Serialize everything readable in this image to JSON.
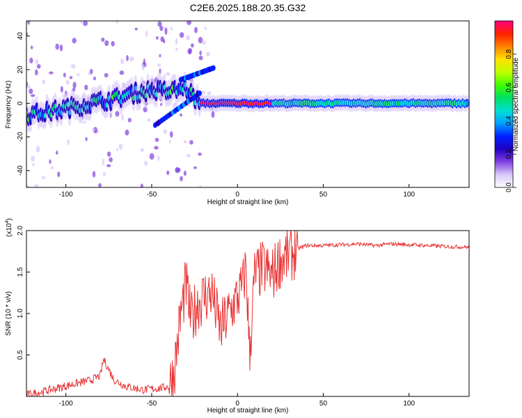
{
  "title": "C2E6.2025.188.20.35.G32",
  "chart_data": [
    {
      "type": "heatmap",
      "xlabel": "Height of straight line (km)",
      "ylabel": "Frequency (Hz)",
      "xlim": [
        -123,
        135
      ],
      "ylim": [
        -50,
        49
      ],
      "xticks": [
        -100,
        -50,
        0,
        50,
        100
      ],
      "xtick_labels": [
        "-100",
        "-50",
        "0",
        "50",
        "100"
      ],
      "yticks": [
        -40,
        -20,
        0,
        20,
        40
      ],
      "ytick_labels": [
        "-40",
        "-20",
        "0",
        "20",
        "40"
      ],
      "colorbar": {
        "label": "Normalized spectral amplitude",
        "range": [
          0,
          1
        ],
        "ticks": [
          0.0,
          0.2,
          0.4,
          0.6,
          0.8
        ],
        "tick_labels": [
          "0.0",
          "0.2",
          "0.4",
          "0.6",
          "0.8"
        ],
        "colormap": [
          "#ffffff",
          "#d8c8f8",
          "#8040e0",
          "#2000c0",
          "#0020ff",
          "#00a0ff",
          "#00e0d0",
          "#00e060",
          "#40ff00",
          "#c0ff00",
          "#ffe000",
          "#ff8000",
          "#ff2000",
          "#ff0080"
        ]
      },
      "ridge": [
        {
          "x": -123,
          "y": -7
        },
        {
          "x": -110,
          "y": -5
        },
        {
          "x": -100,
          "y": -3
        },
        {
          "x": -90,
          "y": -1
        },
        {
          "x": -80,
          "y": 1
        },
        {
          "x": -70,
          "y": 3
        },
        {
          "x": -60,
          "y": 6
        },
        {
          "x": -50,
          "y": 8
        },
        {
          "x": -40,
          "y": 7
        },
        {
          "x": -30,
          "y": 9
        },
        {
          "x": -22,
          "y": 0
        },
        {
          "x": 0,
          "y": 0
        },
        {
          "x": 50,
          "y": 0
        },
        {
          "x": 100,
          "y": 0
        },
        {
          "x": 135,
          "y": 0
        }
      ],
      "description_peak_ridge_x": [
        -22,
        20
      ]
    },
    {
      "type": "line",
      "xlabel": "Height of straight line (km)",
      "ylabel": "SNR (10 * v/v)",
      "y_multiplier": "(x10",
      "y_multiplier_exp": "4",
      "xlim": [
        -123,
        135
      ],
      "ylim": [
        0,
        2.0
      ],
      "xticks": [
        -100,
        -50,
        0,
        50,
        100
      ],
      "xtick_labels": [
        "-100",
        "-50",
        "0",
        "50",
        "100"
      ],
      "yticks": [
        0.5,
        1.0,
        1.5,
        2.0
      ],
      "ytick_labels": [
        "0.5",
        "1.0",
        "1.5",
        "2.0"
      ],
      "color": "#e83030",
      "series": [
        {
          "x": [
            -123,
            -115,
            -105,
            -95,
            -85,
            -80,
            -78,
            -72,
            -65,
            -55,
            -45,
            -40,
            -37,
            -33,
            -30,
            -27,
            -24,
            -20,
            -15,
            -10,
            -5,
            0,
            3,
            5,
            7,
            10,
            15,
            20,
            25,
            30,
            35,
            40,
            50,
            60,
            70,
            80,
            90,
            100,
            110,
            120,
            135
          ],
          "y": [
            0.02,
            0.05,
            0.1,
            0.15,
            0.2,
            0.25,
            0.45,
            0.2,
            0.12,
            0.08,
            0.1,
            0.12,
            0.3,
            1.0,
            1.35,
            0.9,
            1.1,
            1.2,
            1.25,
            0.8,
            1.0,
            1.2,
            1.3,
            1.6,
            0.5,
            1.45,
            1.55,
            1.45,
            1.65,
            1.7,
            1.78,
            1.82,
            1.82,
            1.83,
            1.84,
            1.82,
            1.84,
            1.83,
            1.82,
            1.81,
            1.8
          ]
        }
      ]
    }
  ]
}
